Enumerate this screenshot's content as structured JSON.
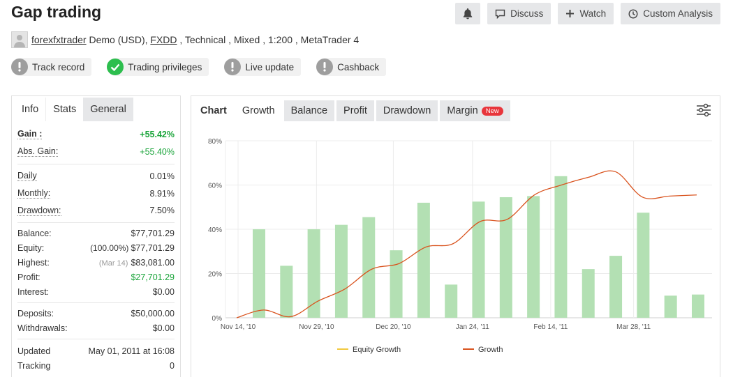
{
  "header": {
    "title": "Gap trading",
    "buttons": {
      "discuss": "Discuss",
      "watch": "Watch",
      "custom_analysis": "Custom Analysis"
    }
  },
  "meta": {
    "user": "forexfxtrader",
    "account": " Demo (USD), ",
    "broker": "FXDD",
    "rest": " , Technical , Mixed , 1:200 , MetaTrader 4"
  },
  "badges": [
    {
      "label": "Track record",
      "status": "gray"
    },
    {
      "label": "Trading privileges",
      "status": "green"
    },
    {
      "label": "Live update",
      "status": "gray"
    },
    {
      "label": "Cashback",
      "status": "gray"
    }
  ],
  "left_tabs": [
    "Info",
    "Stats",
    "General"
  ],
  "stats": {
    "gain": {
      "label": "Gain :",
      "value": "+55.42%"
    },
    "abs_gain": {
      "label": "Abs. Gain:",
      "value": "+55.40%"
    },
    "daily": {
      "label": "Daily",
      "value": "0.01%"
    },
    "monthly": {
      "label": "Monthly:",
      "value": "8.91%"
    },
    "drawdown": {
      "label": "Drawdown:",
      "value": "7.50%"
    },
    "balance": {
      "label": "Balance:",
      "value": "$77,701.29"
    },
    "equity": {
      "label": "Equity:",
      "pct": "(100.00%)",
      "value": "$77,701.29"
    },
    "highest": {
      "label": "Highest:",
      "date": "(Mar 14)",
      "value": "$83,081.00"
    },
    "profit": {
      "label": "Profit:",
      "value": "$27,701.29"
    },
    "interest": {
      "label": "Interest:",
      "value": "$0.00"
    },
    "deposits": {
      "label": "Deposits:",
      "value": "$50,000.00"
    },
    "withdrawals": {
      "label": "Withdrawals:",
      "value": "$0.00"
    },
    "updated": {
      "label": "Updated",
      "value": "May 01, 2011 at 16:08"
    },
    "tracking": {
      "label": "Tracking",
      "value": "0"
    }
  },
  "right_tabs": {
    "chart_label": "Chart",
    "tabs": [
      "Growth",
      "Balance",
      "Profit",
      "Drawdown",
      "Margin"
    ],
    "new_tag": "New"
  },
  "colors": {
    "bar": "#b3e0b3",
    "growth_line": "#d9531e",
    "equity_line": "#f2c93e",
    "positive": "#1aa43a"
  },
  "chart_data": {
    "type": "bar",
    "ylim": [
      0,
      80
    ],
    "yticks": [
      "0%",
      "20%",
      "40%",
      "60%",
      "80%"
    ],
    "xtick_labels": [
      "Nov 14, '10",
      "Nov 29, '10",
      "Dec 20, '10",
      "Jan 24, '11",
      "Feb 14, '11",
      "Mar 28, '11"
    ],
    "bars": [
      40,
      23.5,
      40,
      42,
      45.5,
      30.5,
      52,
      15,
      52.5,
      54.5,
      55,
      64,
      22,
      28,
      47.5,
      10,
      10.5
    ],
    "growth_line": [
      0,
      3.5,
      0.5,
      7.5,
      13,
      22,
      24.5,
      32,
      33.5,
      43.5,
      44.5,
      55.5,
      60,
      63.5,
      66,
      54.5,
      55,
      55.5
    ],
    "legend": [
      {
        "name": "Equity Growth",
        "color": "#f2c93e"
      },
      {
        "name": "Growth",
        "color": "#d9531e"
      }
    ]
  }
}
